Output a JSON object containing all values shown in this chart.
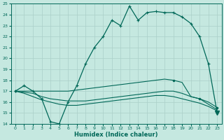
{
  "xlabel": "Humidex (Indice chaleur)",
  "xlim": [
    -0.5,
    23.5
  ],
  "ylim": [
    14,
    25
  ],
  "yticks": [
    14,
    15,
    16,
    17,
    18,
    19,
    20,
    21,
    22,
    23,
    24,
    25
  ],
  "xticks": [
    0,
    1,
    2,
    3,
    4,
    5,
    6,
    7,
    8,
    9,
    10,
    11,
    12,
    13,
    14,
    15,
    16,
    17,
    18,
    19,
    20,
    21,
    22,
    23
  ],
  "bg_color": "#c5e8e0",
  "grid_color": "#aacfc8",
  "line_color": "#006858",
  "series": {
    "humidex_main": [
      17.0,
      17.5,
      17.0,
      16.3,
      14.2,
      14.0,
      16.0,
      17.5,
      19.5,
      21.0,
      22.0,
      23.5,
      23.0,
      24.8,
      23.5,
      24.2,
      24.3,
      24.2,
      24.2,
      23.8,
      23.2,
      22.0,
      19.5,
      15.0
    ],
    "humidex_line1": [
      17.0,
      17.0,
      17.0,
      17.0,
      17.0,
      17.0,
      17.0,
      17.1,
      17.2,
      17.3,
      17.4,
      17.5,
      17.6,
      17.7,
      17.8,
      17.9,
      18.0,
      18.1,
      18.0,
      17.8,
      16.5,
      16.3,
      16.0,
      15.5
    ],
    "humidex_line2": [
      17.0,
      16.9,
      16.8,
      16.5,
      16.3,
      16.2,
      16.1,
      16.1,
      16.1,
      16.2,
      16.3,
      16.4,
      16.5,
      16.6,
      16.7,
      16.8,
      16.9,
      17.0,
      17.0,
      16.8,
      16.5,
      16.3,
      15.8,
      15.3
    ],
    "humidex_line3": [
      17.0,
      16.8,
      16.5,
      16.2,
      16.0,
      15.8,
      15.7,
      15.7,
      15.8,
      15.9,
      16.0,
      16.1,
      16.2,
      16.3,
      16.4,
      16.5,
      16.6,
      16.6,
      16.5,
      16.3,
      16.1,
      15.9,
      15.6,
      15.2
    ]
  },
  "marker_hours_main": [
    0,
    1,
    2,
    3,
    4,
    5,
    6,
    7,
    8,
    9,
    10,
    11,
    12,
    13,
    14,
    15,
    16,
    17,
    18,
    19,
    20,
    21,
    22,
    23
  ],
  "marker_hours_line1": [
    0,
    18,
    21,
    23
  ],
  "marker_hours_line3": [
    23
  ]
}
